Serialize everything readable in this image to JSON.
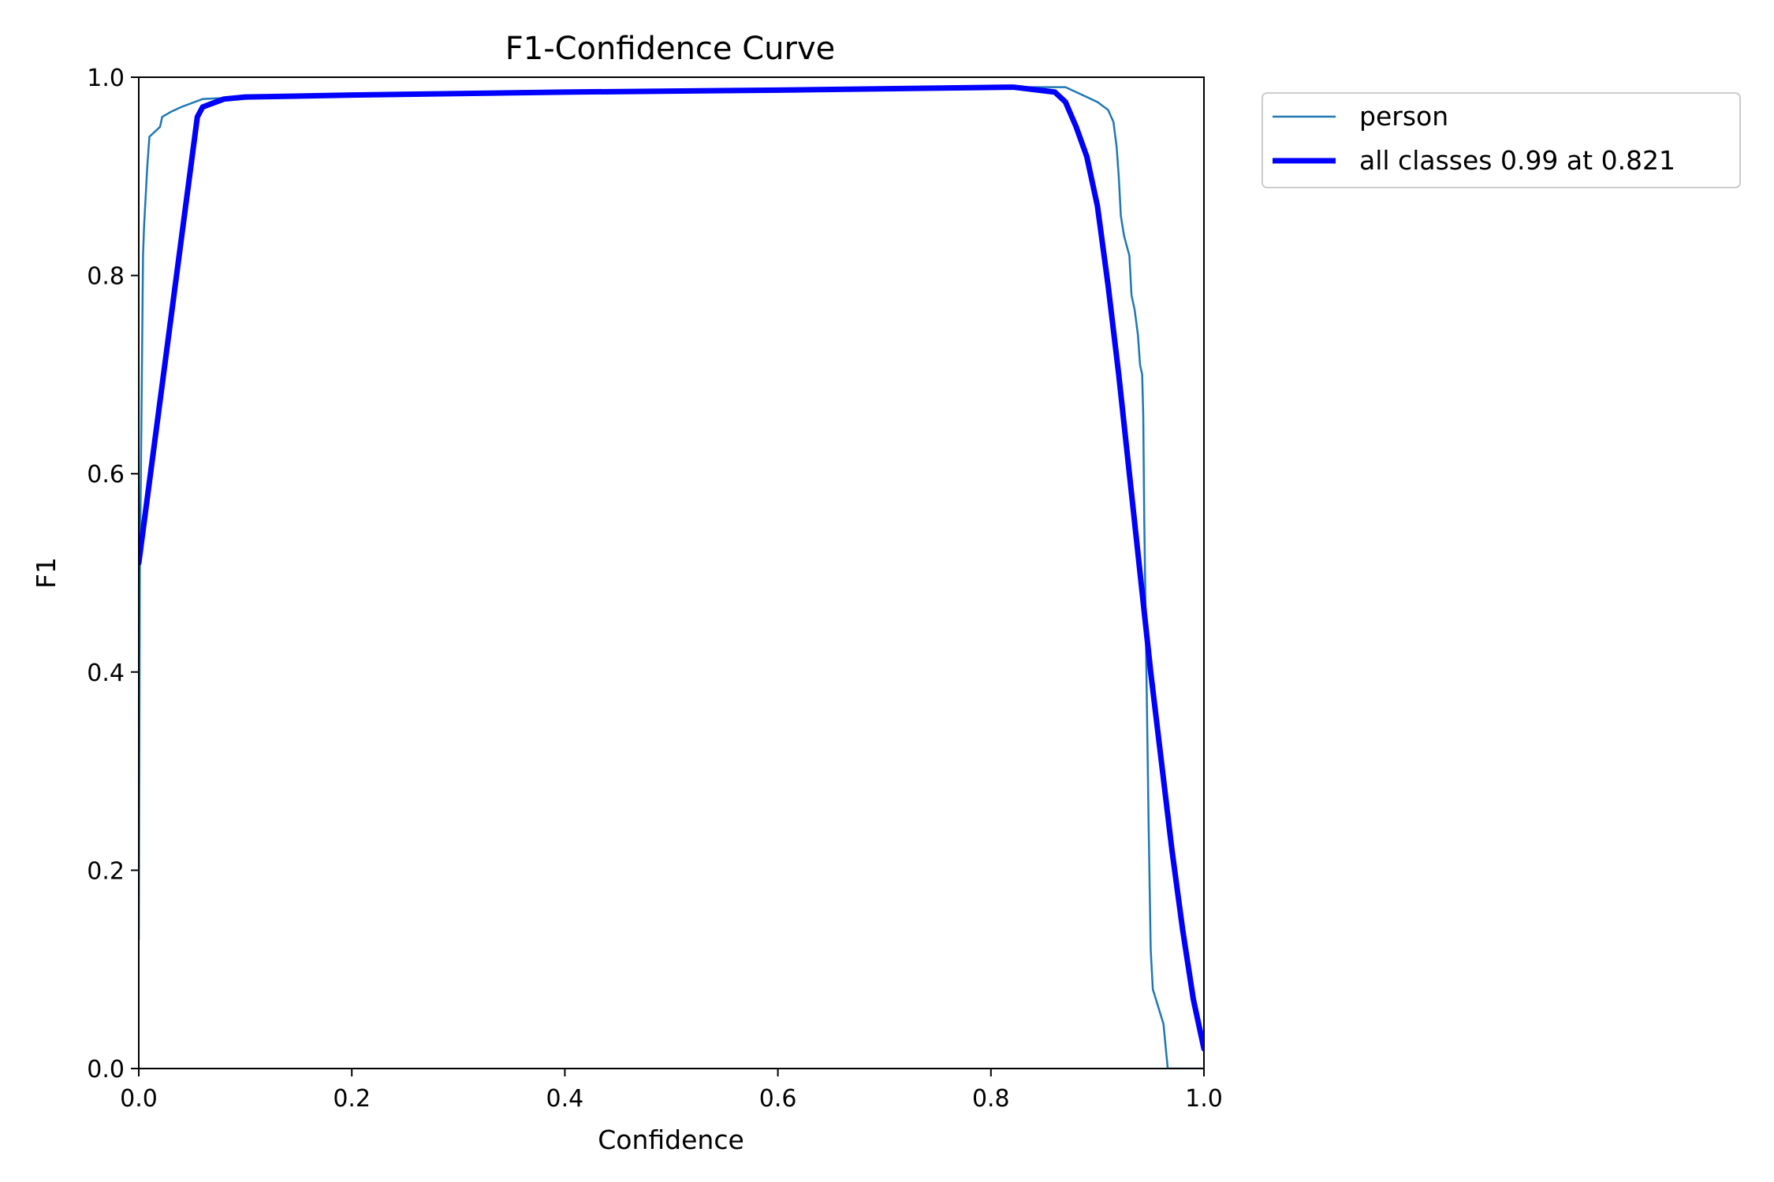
{
  "chart_data": {
    "type": "line",
    "title": "F1-Confidence Curve",
    "xlabel": "Confidence",
    "ylabel": "F1",
    "xlim": [
      0.0,
      1.0
    ],
    "ylim": [
      0.0,
      1.0
    ],
    "xticks": [
      "0.0",
      "0.2",
      "0.4",
      "0.6",
      "0.8",
      "1.0"
    ],
    "yticks": [
      "0.0",
      "0.2",
      "0.4",
      "0.6",
      "0.8",
      "1.0"
    ],
    "grid": false,
    "legend_position": "outside-top-right",
    "series": [
      {
        "name": "person",
        "color": "#1f77b4",
        "points": [
          [
            0.0,
            0.13
          ],
          [
            0.001,
            0.5
          ],
          [
            0.002,
            0.6
          ],
          [
            0.004,
            0.82
          ],
          [
            0.005,
            0.85
          ],
          [
            0.006,
            0.87
          ],
          [
            0.008,
            0.91
          ],
          [
            0.01,
            0.94
          ],
          [
            0.02,
            0.95
          ],
          [
            0.022,
            0.96
          ],
          [
            0.03,
            0.965
          ],
          [
            0.04,
            0.97
          ],
          [
            0.06,
            0.978
          ],
          [
            0.1,
            0.98
          ],
          [
            0.2,
            0.982
          ],
          [
            0.4,
            0.985
          ],
          [
            0.6,
            0.987
          ],
          [
            0.8,
            0.99
          ],
          [
            0.87,
            0.99
          ],
          [
            0.89,
            0.98
          ],
          [
            0.9,
            0.975
          ],
          [
            0.91,
            0.967
          ],
          [
            0.915,
            0.955
          ],
          [
            0.918,
            0.93
          ],
          [
            0.92,
            0.9
          ],
          [
            0.922,
            0.86
          ],
          [
            0.925,
            0.84
          ],
          [
            0.93,
            0.82
          ],
          [
            0.932,
            0.78
          ],
          [
            0.935,
            0.765
          ],
          [
            0.938,
            0.74
          ],
          [
            0.94,
            0.71
          ],
          [
            0.942,
            0.7
          ],
          [
            0.943,
            0.66
          ],
          [
            0.944,
            0.55
          ],
          [
            0.946,
            0.4
          ],
          [
            0.948,
            0.25
          ],
          [
            0.95,
            0.12
          ],
          [
            0.952,
            0.08
          ],
          [
            0.962,
            0.045
          ],
          [
            0.966,
            0.0
          ],
          [
            1.0,
            0.0
          ]
        ]
      },
      {
        "name": "all classes 0.99 at 0.821",
        "color": "#0000ff",
        "points": [
          [
            0.0,
            0.51
          ],
          [
            0.055,
            0.96
          ],
          [
            0.06,
            0.97
          ],
          [
            0.08,
            0.978
          ],
          [
            0.1,
            0.98
          ],
          [
            0.2,
            0.982
          ],
          [
            0.4,
            0.985
          ],
          [
            0.6,
            0.987
          ],
          [
            0.821,
            0.99
          ],
          [
            0.86,
            0.985
          ],
          [
            0.87,
            0.975
          ],
          [
            0.88,
            0.95
          ],
          [
            0.89,
            0.92
          ],
          [
            0.9,
            0.87
          ],
          [
            0.91,
            0.79
          ],
          [
            0.92,
            0.7
          ],
          [
            0.93,
            0.6
          ],
          [
            0.94,
            0.5
          ],
          [
            0.95,
            0.4
          ],
          [
            0.96,
            0.31
          ],
          [
            0.97,
            0.22
          ],
          [
            0.98,
            0.14
          ],
          [
            0.99,
            0.07
          ],
          [
            1.0,
            0.02
          ]
        ]
      }
    ]
  }
}
